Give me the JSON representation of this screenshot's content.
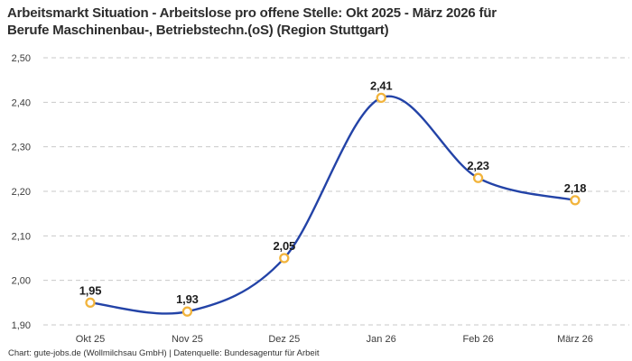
{
  "header": {
    "title_line1": "Arbeitsmarkt Situation - Arbeitslose pro offene Stelle: Okt 2025 - März 2026 für",
    "title_line2": "Berufe Maschinenbau-, Betriebstechn.(oS) (Region Stuttgart)"
  },
  "footer": {
    "attribution": "Chart: gute-jobs.de (Wollmilchsau GmbH) | Datenquelle: Bundesagentur für Arbeit"
  },
  "chart_data": {
    "type": "line",
    "title": "Arbeitsmarkt Situation - Arbeitslose pro offene Stelle: Okt 2025 - März 2026 für Berufe Maschinenbau-, Betriebstechn.(oS) (Region Stuttgart)",
    "categories": [
      "Okt 25",
      "Nov 25",
      "Dez 25",
      "Jan 26",
      "Feb 26",
      "März 26"
    ],
    "values": [
      1.95,
      1.93,
      2.05,
      2.41,
      2.23,
      2.18
    ],
    "value_labels": [
      "1,95",
      "1,93",
      "2,05",
      "2,41",
      "2,23",
      "2,18"
    ],
    "y_ticks": [
      1.9,
      2.0,
      2.1,
      2.2,
      2.3,
      2.4,
      2.5
    ],
    "y_tick_labels": [
      "1,90",
      "2,00",
      "2,10",
      "2,20",
      "2,30",
      "2,40",
      "2,50"
    ],
    "ylim": [
      1.9,
      2.5
    ],
    "xlabel": "",
    "ylabel": "",
    "grid": "horizontal-dashed",
    "legend": "none",
    "line_smoothing": "spline",
    "colors": {
      "line": "#2343a7",
      "marker_ring": "#f2b43c",
      "marker_fill": "#ffffff",
      "gridline": "#c9c9c9",
      "title_text": "#2d2d2d",
      "tick_text": "#3c3c3c",
      "label_text": "#1d1d1d"
    }
  }
}
